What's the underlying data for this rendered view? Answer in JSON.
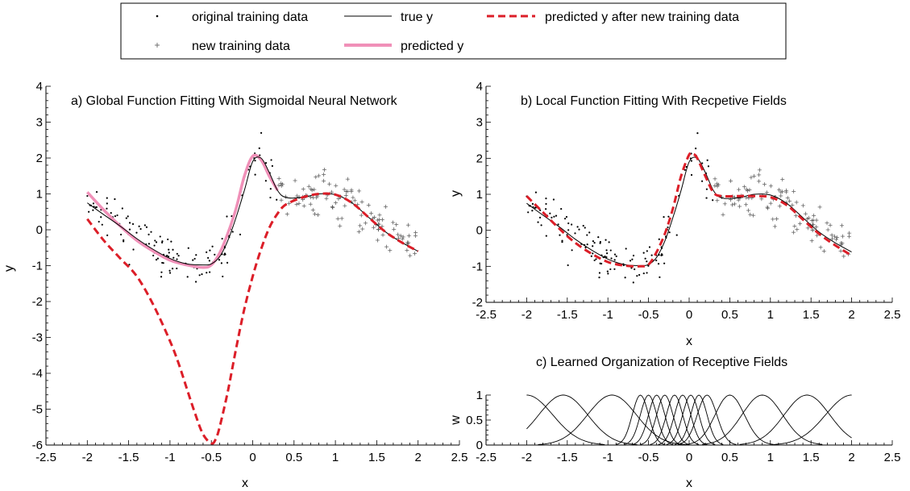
{
  "legend": {
    "entries": [
      {
        "key": "orig",
        "label": "original training data",
        "marker": "dot",
        "color": "#000000"
      },
      {
        "key": "truey",
        "label": "true y",
        "marker": "line",
        "color": "#000000"
      },
      {
        "key": "pred_after",
        "label": "predicted y after new training data",
        "marker": "dashed",
        "color": "#dc1e28"
      },
      {
        "key": "newdata",
        "label": "new training data",
        "marker": "plus",
        "color": "#555555"
      },
      {
        "key": "pred",
        "label": "predicted y",
        "marker": "thick",
        "color": "#f090b8"
      }
    ]
  },
  "colors": {
    "true_y": "#000000",
    "predicted_y": "#f090b8",
    "predicted_after": "#dc1e28",
    "points": "#000000"
  },
  "chart_data": [
    {
      "id": "a",
      "type": "line",
      "title": "a) Global Function Fitting With Sigmoidal Neural Network",
      "xlabel": "x",
      "ylabel": "y",
      "xlim": [
        -2.5,
        2.5
      ],
      "ylim": [
        -6,
        4
      ],
      "xticks": [
        "-2.5",
        "-2",
        "-1.5",
        "-1",
        "-0.5",
        "0",
        "0.5",
        "1",
        "1.5",
        "2",
        "2.5"
      ],
      "yticks": [
        "-6",
        "-5",
        "-4",
        "-3",
        "-2",
        "-1",
        "0",
        "1",
        "2",
        "3",
        "4"
      ],
      "series": [
        {
          "name": "true y",
          "x": [
            -2.0,
            -1.8,
            -1.6,
            -1.4,
            -1.2,
            -1.0,
            -0.8,
            -0.6,
            -0.5,
            -0.4,
            -0.3,
            -0.2,
            -0.1,
            0.0,
            0.1,
            0.2,
            0.3,
            0.4,
            0.6,
            0.8,
            1.0,
            1.2,
            1.4,
            1.6,
            1.8,
            2.0
          ],
          "y": [
            0.75,
            0.42,
            0.1,
            -0.25,
            -0.55,
            -0.8,
            -0.95,
            -0.98,
            -0.95,
            -0.75,
            -0.3,
            0.35,
            1.1,
            1.9,
            2.0,
            1.6,
            1.1,
            0.9,
            0.9,
            1.0,
            0.98,
            0.75,
            0.35,
            -0.05,
            -0.35,
            -0.6
          ]
        },
        {
          "name": "predicted y",
          "x": [
            -2.0,
            -1.8,
            -1.6,
            -1.4,
            -1.2,
            -1.0,
            -0.8,
            -0.6,
            -0.5,
            -0.4,
            -0.3,
            -0.2,
            -0.1,
            0.0,
            0.1,
            0.2,
            0.3
          ],
          "y": [
            1.05,
            0.55,
            0.1,
            -0.3,
            -0.6,
            -0.85,
            -0.98,
            -1.05,
            -0.98,
            -0.65,
            -0.1,
            0.6,
            1.5,
            2.05,
            1.95,
            1.5,
            1.1
          ]
        },
        {
          "name": "predicted y after new training data",
          "x": [
            -2.0,
            -1.8,
            -1.6,
            -1.4,
            -1.2,
            -1.0,
            -0.9,
            -0.8,
            -0.7,
            -0.6,
            -0.5,
            -0.45,
            -0.4,
            -0.3,
            -0.2,
            -0.1,
            0.0,
            0.1,
            0.2,
            0.3,
            0.4,
            0.6,
            0.8,
            1.0,
            1.2,
            1.4,
            1.6,
            1.8,
            2.0
          ],
          "y": [
            0.3,
            -0.3,
            -0.8,
            -1.3,
            -2.1,
            -3.1,
            -3.7,
            -4.4,
            -5.1,
            -5.7,
            -5.95,
            -5.85,
            -5.5,
            -4.5,
            -3.3,
            -2.2,
            -1.3,
            -0.55,
            0.05,
            0.45,
            0.7,
            0.9,
            1.0,
            0.98,
            0.75,
            0.35,
            -0.05,
            -0.35,
            -0.6
          ]
        }
      ],
      "scatter": [
        {
          "name": "original training data",
          "x_range": [
            -2.0,
            0.3
          ]
        },
        {
          "name": "new training data",
          "x_range": [
            0.3,
            2.0
          ]
        }
      ]
    },
    {
      "id": "b",
      "type": "line",
      "title": "b) Local Function Fitting With Recpetive Fields",
      "xlabel": "x",
      "ylabel": "y",
      "xlim": [
        -2.5,
        2.5
      ],
      "ylim": [
        -2,
        4
      ],
      "xticks": [
        "-2.5",
        "-2",
        "-1.5",
        "-1",
        "-0.5",
        "0",
        "0.5",
        "1",
        "1.5",
        "2",
        "2.5"
      ],
      "yticks": [
        "-2",
        "-1",
        "0",
        "1",
        "2",
        "3",
        "4"
      ],
      "series": [
        {
          "name": "true y",
          "x": [
            -2.0,
            -1.8,
            -1.6,
            -1.4,
            -1.2,
            -1.0,
            -0.8,
            -0.6,
            -0.5,
            -0.4,
            -0.3,
            -0.2,
            -0.1,
            0.0,
            0.1,
            0.2,
            0.3,
            0.4,
            0.6,
            0.8,
            1.0,
            1.2,
            1.4,
            1.6,
            1.8,
            2.0
          ],
          "y": [
            0.75,
            0.42,
            0.1,
            -0.25,
            -0.55,
            -0.8,
            -0.95,
            -0.98,
            -0.95,
            -0.75,
            -0.3,
            0.35,
            1.1,
            1.9,
            2.0,
            1.6,
            1.1,
            0.9,
            0.9,
            1.0,
            0.98,
            0.75,
            0.35,
            -0.05,
            -0.35,
            -0.6
          ]
        },
        {
          "name": "predicted y after new training data",
          "x": [
            -2.0,
            -1.8,
            -1.6,
            -1.4,
            -1.2,
            -1.0,
            -0.8,
            -0.6,
            -0.5,
            -0.4,
            -0.3,
            -0.2,
            -0.1,
            0.0,
            0.05,
            0.1,
            0.2,
            0.3,
            0.4,
            0.6,
            0.8,
            1.0,
            1.2,
            1.4,
            1.6,
            1.8,
            2.0
          ],
          "y": [
            0.95,
            0.5,
            0.05,
            -0.35,
            -0.65,
            -0.88,
            -0.98,
            -1.0,
            -0.95,
            -0.6,
            -0.1,
            0.6,
            1.5,
            2.1,
            2.12,
            2.0,
            1.5,
            1.05,
            0.95,
            0.95,
            0.95,
            0.92,
            0.7,
            0.3,
            -0.1,
            -0.42,
            -0.7
          ]
        }
      ],
      "scatter": [
        {
          "name": "original training data",
          "x_range": [
            -2.0,
            0.3
          ]
        },
        {
          "name": "new training data",
          "x_range": [
            0.3,
            2.0
          ]
        }
      ]
    },
    {
      "id": "c",
      "type": "line",
      "title": "c) Learned Organization of Receptive Fields",
      "xlabel": "x",
      "ylabel": "w",
      "xlim": [
        -2.5,
        2.5
      ],
      "ylim": [
        0,
        1
      ],
      "xticks": [
        "-2.5",
        "-2",
        "-1.5",
        "-1",
        "-0.5",
        "0",
        "0.5",
        "1",
        "1.5",
        "2",
        "2.5"
      ],
      "yticks": [
        "0",
        "0.5",
        "1"
      ],
      "receptive_fields": [
        {
          "center": -2.0,
          "width": 0.32
        },
        {
          "center": -1.55,
          "width": 0.3
        },
        {
          "center": -0.95,
          "width": 0.3
        },
        {
          "center": -0.6,
          "width": 0.1
        },
        {
          "center": -0.5,
          "width": 0.1
        },
        {
          "center": -0.4,
          "width": 0.1
        },
        {
          "center": -0.3,
          "width": 0.1
        },
        {
          "center": -0.18,
          "width": 0.1
        },
        {
          "center": -0.08,
          "width": 0.1
        },
        {
          "center": 0.02,
          "width": 0.1
        },
        {
          "center": 0.12,
          "width": 0.1
        },
        {
          "center": 0.22,
          "width": 0.12
        },
        {
          "center": 0.5,
          "width": 0.18
        },
        {
          "center": 0.9,
          "width": 0.25
        },
        {
          "center": 1.45,
          "width": 0.28
        },
        {
          "center": 2.0,
          "width": 0.32
        }
      ]
    }
  ]
}
